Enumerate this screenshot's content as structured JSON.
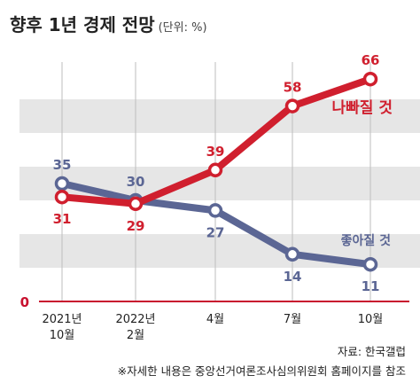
{
  "header": {
    "title": "향후 1년 경제 전망",
    "unit": "(단위: %)"
  },
  "footer": {
    "source": "자료: 한국갤럽",
    "note": "※자세한 내용은 중앙선거여론조사심의위원회 홈페이지를 참조"
  },
  "chart_data": {
    "type": "line",
    "title": "향후 1년 경제 전망",
    "unit": "(단위: %)",
    "categories": [
      "2021년 10월",
      "2022년 2월",
      "4월",
      "7월",
      "10월"
    ],
    "category_lines": [
      [
        "2021년",
        "10월"
      ],
      [
        "2022년",
        "2월"
      ],
      [
        "4월"
      ],
      [
        "7월"
      ],
      [
        "10월"
      ]
    ],
    "series": [
      {
        "name": "나빠질 것",
        "color": "#d01f2e",
        "values": [
          31,
          29,
          39,
          58,
          66
        ]
      },
      {
        "name": "좋아질 것",
        "color": "#5b6694",
        "values": [
          35,
          30,
          27,
          14,
          11
        ]
      }
    ],
    "ylim": [
      0,
      70
    ],
    "y_tick_labels": [
      "0"
    ],
    "grid": "alternating horizontal bands",
    "colors": {
      "band": "#e6e6e6",
      "axis": "#c8102e"
    }
  }
}
